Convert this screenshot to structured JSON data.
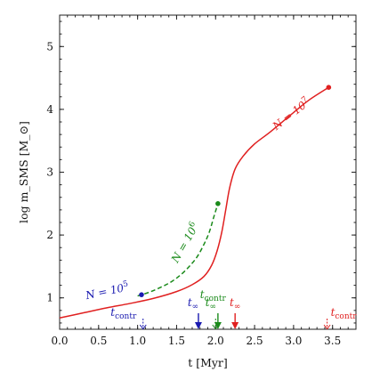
{
  "chart_data": {
    "type": "line",
    "xlabel": "t [Myr]",
    "ylabel": "log m_SMS [M_⊙]",
    "xlim": [
      0.0,
      3.8
    ],
    "ylim": [
      0.5,
      5.5
    ],
    "xticks": [
      "0.0",
      "0.5",
      "1.0",
      "1.5",
      "2.0",
      "2.5",
      "3.0",
      "3.5"
    ],
    "yticks": [
      "1",
      "2",
      "3",
      "4",
      "5"
    ],
    "grid": false,
    "legend": "none",
    "series": [
      {
        "name": "N = 10^7",
        "color": "#e02020",
        "dash": "solid",
        "label_text": "N = 10",
        "label_exp": "7",
        "x": [
          0.0,
          0.3,
          0.6,
          0.9,
          1.2,
          1.5,
          1.7,
          1.85,
          1.95,
          2.02,
          2.08,
          2.13,
          2.18,
          2.25,
          2.35,
          2.5,
          2.7,
          3.0,
          3.2,
          3.45
        ],
        "y": [
          0.68,
          0.76,
          0.84,
          0.91,
          0.99,
          1.1,
          1.21,
          1.34,
          1.52,
          1.75,
          2.05,
          2.4,
          2.75,
          3.05,
          3.25,
          3.45,
          3.64,
          3.95,
          4.15,
          4.35
        ]
      },
      {
        "name": "N = 10^6",
        "color": "#1a8a1a",
        "dash": "dashed",
        "label_text": "N = 10",
        "label_exp": "6",
        "x": [
          1.0,
          1.15,
          1.3,
          1.45,
          1.6,
          1.75,
          1.85,
          1.92,
          1.98,
          2.03
        ],
        "y": [
          1.03,
          1.09,
          1.17,
          1.27,
          1.42,
          1.63,
          1.85,
          2.05,
          2.3,
          2.5
        ]
      },
      {
        "name": "N = 10^5",
        "color": "#1a1ab0",
        "dash": "solid",
        "label_text": "N = 10",
        "label_exp": "5",
        "x": [
          1.05
        ],
        "y": [
          1.05
        ]
      }
    ],
    "markers": [
      {
        "series": "N = 10^7",
        "t_contr_label": "t",
        "t_contr_sub": "contr",
        "t_contr": 3.43,
        "t_inf_label": "t",
        "t_inf_sub": "∞",
        "t_inf": 2.25
      },
      {
        "series": "N = 10^6",
        "t_contr_label": "t",
        "t_contr_sub": "contr",
        "t_contr": 2.0,
        "t_inf_label": "t",
        "t_inf_sub": "∞",
        "t_inf": 2.03
      },
      {
        "series": "N = 10^5",
        "t_contr_label": "t",
        "t_contr_sub": "contr",
        "t_contr": 1.07,
        "t_inf_label": "t",
        "t_inf_sub": "∞",
        "t_inf": 1.78
      }
    ]
  }
}
